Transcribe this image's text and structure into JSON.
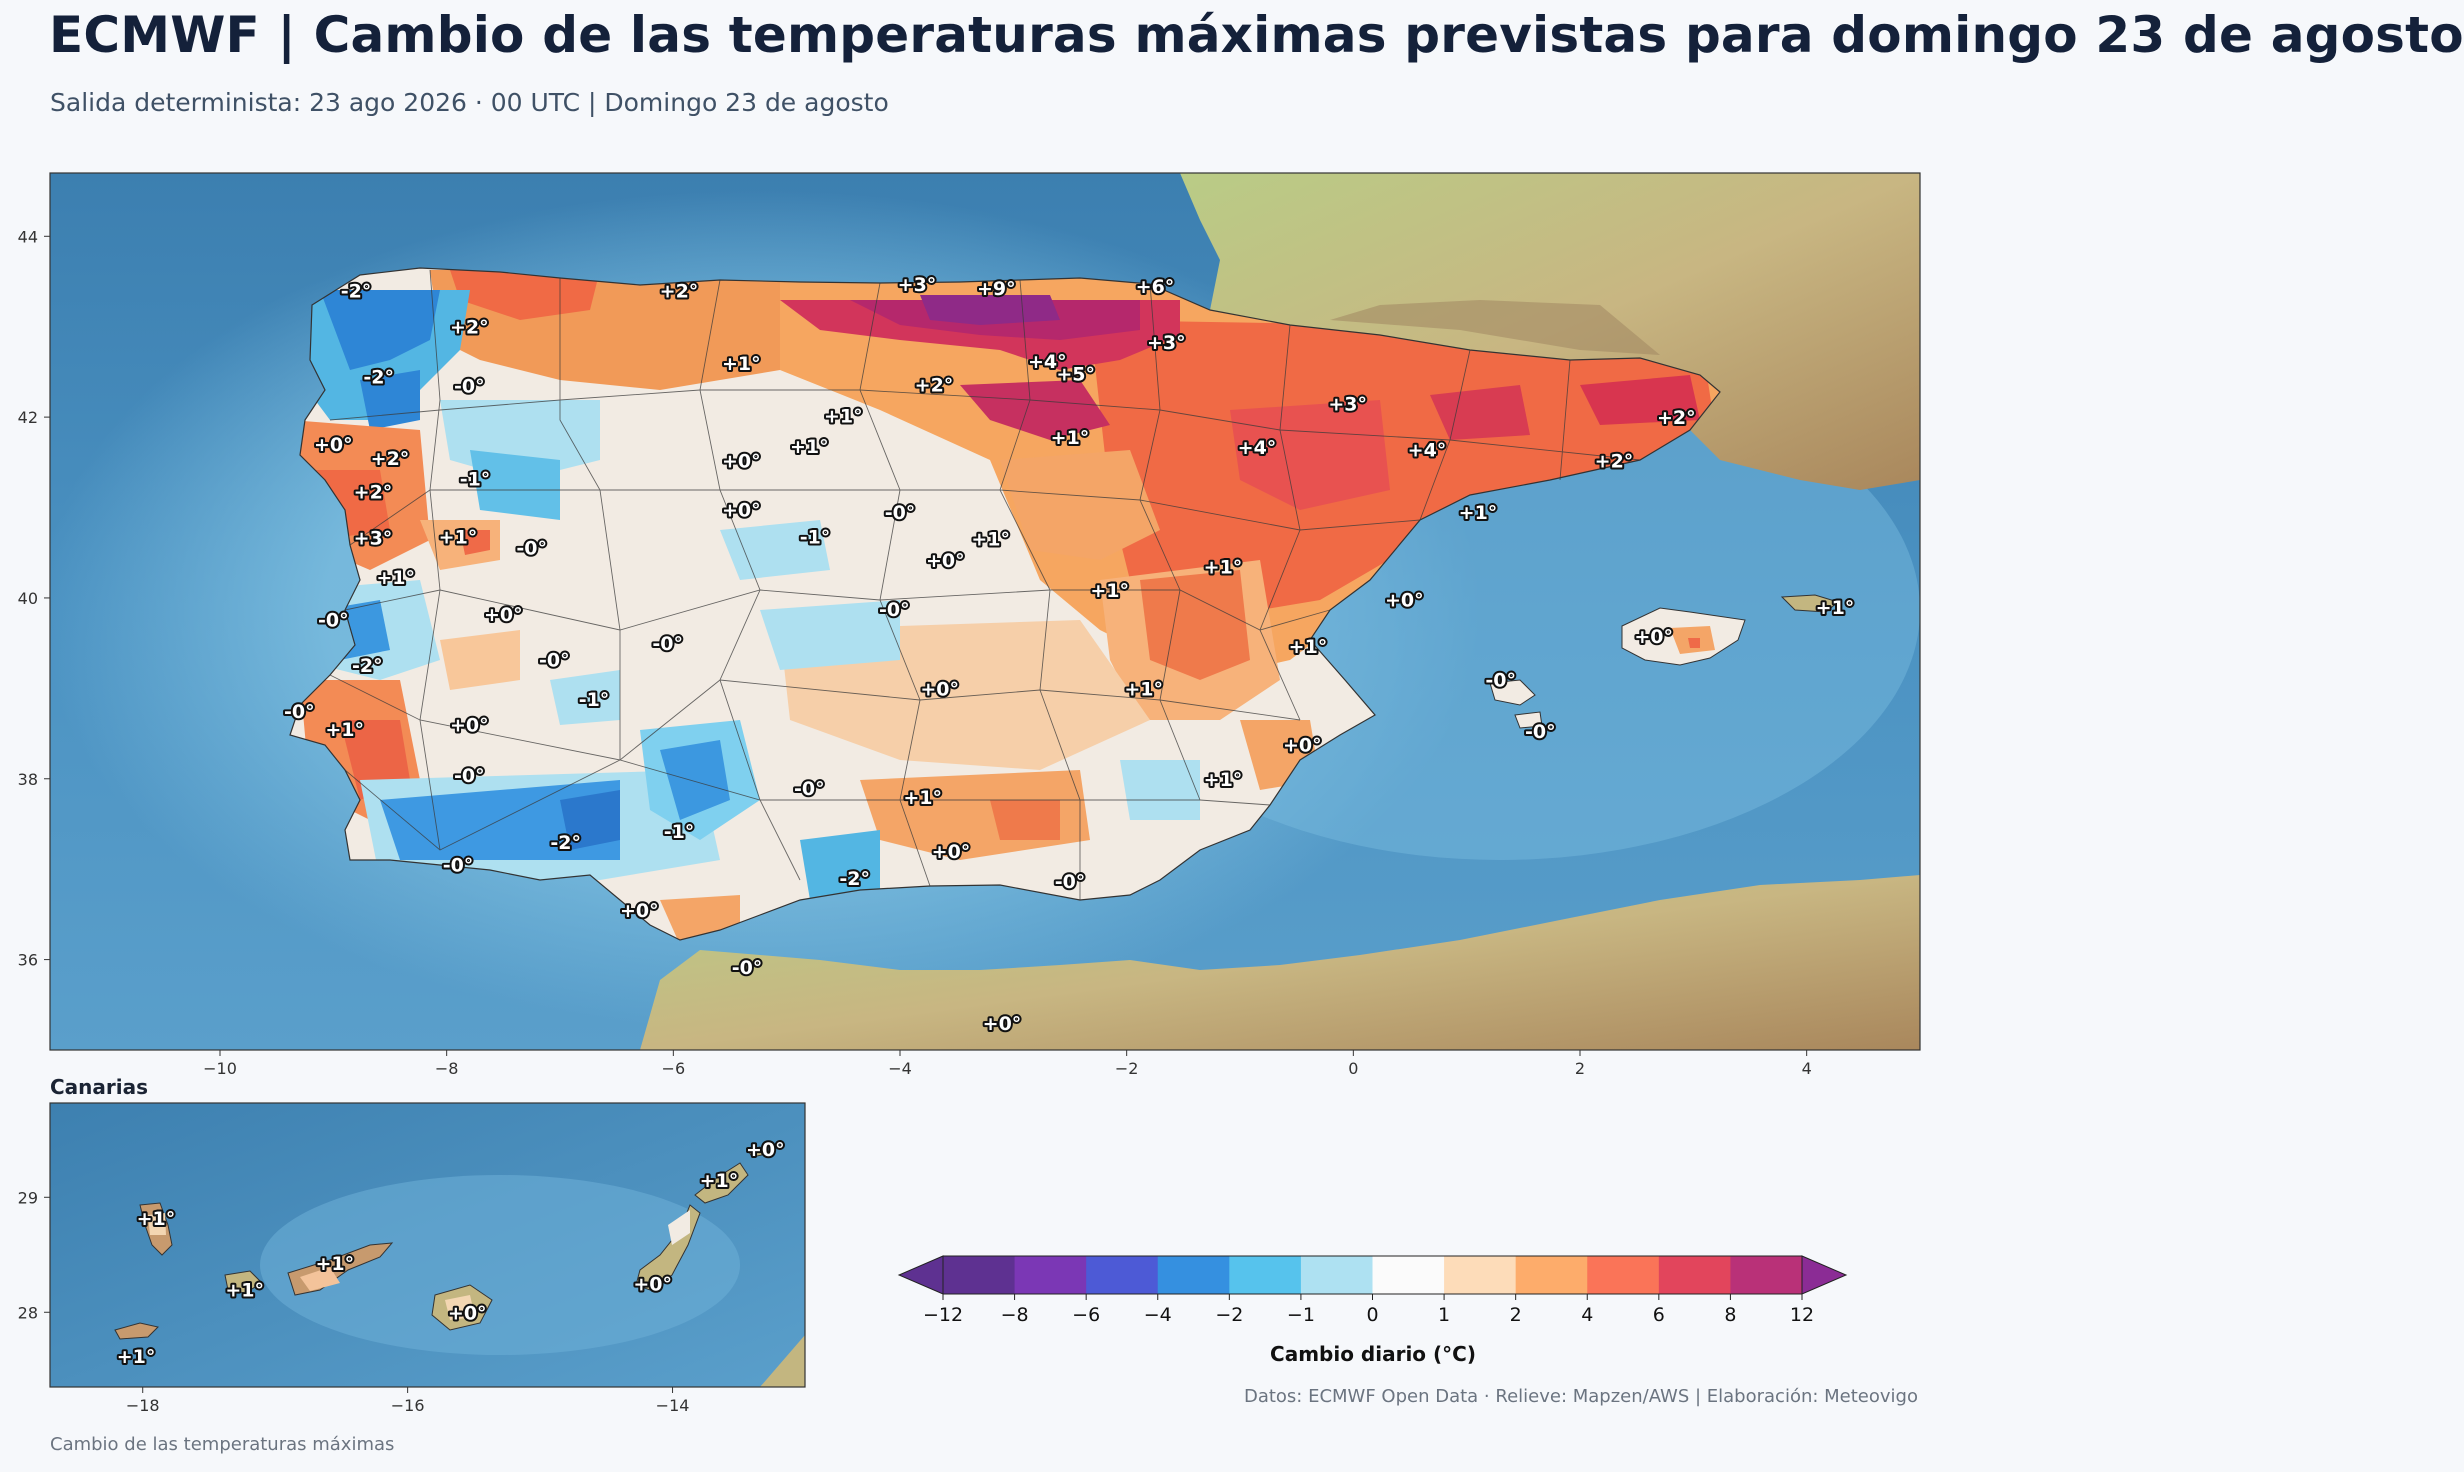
{
  "header": {
    "title": "ECMWF | Cambio de las temperaturas máximas previstas para domingo 23 de agosto",
    "subtitle": "Salida determinista: 23 ago 2026 · 00 UTC  |  Domingo 23 de agosto"
  },
  "main_map": {
    "lon_range": [
      -11.5,
      5.0
    ],
    "lat_range": [
      35.0,
      44.7
    ],
    "x_ticks": [
      "−10",
      "−8",
      "−6",
      "−4",
      "−2",
      "0",
      "2",
      "4"
    ],
    "y_ticks": [
      "36",
      "38",
      "40",
      "42",
      "44"
    ],
    "labels": [
      {
        "lon": -8.8,
        "lat": 43.4,
        "text": "-2°"
      },
      {
        "lon": -7.8,
        "lat": 43.0,
        "text": "+2°"
      },
      {
        "lon": -8.6,
        "lat": 42.45,
        "text": "-2°"
      },
      {
        "lon": -7.8,
        "lat": 42.35,
        "text": "-0°"
      },
      {
        "lon": -9.0,
        "lat": 41.7,
        "text": "+0°"
      },
      {
        "lon": -8.5,
        "lat": 41.55,
        "text": "+2°"
      },
      {
        "lon": -8.65,
        "lat": 41.18,
        "text": "+2°"
      },
      {
        "lon": -8.65,
        "lat": 40.67,
        "text": "+3°"
      },
      {
        "lon": -8.45,
        "lat": 40.23,
        "text": "+1°"
      },
      {
        "lon": -7.9,
        "lat": 40.68,
        "text": "+1°"
      },
      {
        "lon": -7.75,
        "lat": 41.32,
        "text": "-1°"
      },
      {
        "lon": -7.25,
        "lat": 40.56,
        "text": "-0°"
      },
      {
        "lon": -9.0,
        "lat": 39.76,
        "text": "-0°"
      },
      {
        "lon": -8.7,
        "lat": 39.26,
        "text": "-2°"
      },
      {
        "lon": -9.3,
        "lat": 38.75,
        "text": "-0°"
      },
      {
        "lon": -8.9,
        "lat": 38.55,
        "text": "+1°"
      },
      {
        "lon": -7.8,
        "lat": 38.6,
        "text": "+0°"
      },
      {
        "lon": -7.8,
        "lat": 38.04,
        "text": "-0°"
      },
      {
        "lon": -7.05,
        "lat": 39.32,
        "text": "-0°"
      },
      {
        "lon": -6.7,
        "lat": 38.88,
        "text": "-1°"
      },
      {
        "lon": -7.5,
        "lat": 39.82,
        "text": "+0°"
      },
      {
        "lon": -6.05,
        "lat": 39.5,
        "text": "-0°"
      },
      {
        "lon": -7.9,
        "lat": 37.05,
        "text": "-0°"
      },
      {
        "lon": -6.95,
        "lat": 37.3,
        "text": "-2°"
      },
      {
        "lon": -5.95,
        "lat": 37.42,
        "text": "-1°"
      },
      {
        "lon": -6.3,
        "lat": 36.55,
        "text": "+0°"
      },
      {
        "lon": -5.35,
        "lat": 35.92,
        "text": "-0°"
      },
      {
        "lon": -5.95,
        "lat": 43.4,
        "text": "+2°"
      },
      {
        "lon": -5.4,
        "lat": 42.6,
        "text": "+1°"
      },
      {
        "lon": -5.4,
        "lat": 41.52,
        "text": "+0°"
      },
      {
        "lon": -5.4,
        "lat": 40.98,
        "text": "+0°"
      },
      {
        "lon": -4.8,
        "lat": 41.68,
        "text": "+1°"
      },
      {
        "lon": -4.5,
        "lat": 42.02,
        "text": "+1°"
      },
      {
        "lon": -4.75,
        "lat": 40.68,
        "text": "-1°"
      },
      {
        "lon": -4.0,
        "lat": 40.95,
        "text": "-0°"
      },
      {
        "lon": -3.6,
        "lat": 40.42,
        "text": "+0°"
      },
      {
        "lon": -4.05,
        "lat": 39.88,
        "text": "-0°"
      },
      {
        "lon": -3.65,
        "lat": 39.0,
        "text": "+0°"
      },
      {
        "lon": -4.8,
        "lat": 37.9,
        "text": "-0°"
      },
      {
        "lon": -3.8,
        "lat": 37.8,
        "text": "+1°"
      },
      {
        "lon": -3.55,
        "lat": 37.2,
        "text": "+0°"
      },
      {
        "lon": -4.4,
        "lat": 36.9,
        "text": "-2°"
      },
      {
        "lon": -3.1,
        "lat": 35.3,
        "text": "+0°"
      },
      {
        "lon": -3.85,
        "lat": 43.47,
        "text": "+3°"
      },
      {
        "lon": -3.15,
        "lat": 43.43,
        "text": "+9°"
      },
      {
        "lon": -3.7,
        "lat": 42.36,
        "text": "+2°"
      },
      {
        "lon": -2.7,
        "lat": 42.62,
        "text": "+4°"
      },
      {
        "lon": -2.45,
        "lat": 42.48,
        "text": "+5°"
      },
      {
        "lon": -2.5,
        "lat": 41.78,
        "text": "+1°"
      },
      {
        "lon": -1.75,
        "lat": 43.45,
        "text": "+6°"
      },
      {
        "lon": -1.65,
        "lat": 42.83,
        "text": "+3°"
      },
      {
        "lon": -3.2,
        "lat": 40.66,
        "text": "+1°"
      },
      {
        "lon": -2.15,
        "lat": 40.09,
        "text": "+1°"
      },
      {
        "lon": -1.15,
        "lat": 40.35,
        "text": "+1°"
      },
      {
        "lon": -1.85,
        "lat": 39.0,
        "text": "+1°"
      },
      {
        "lon": -0.05,
        "lat": 42.15,
        "text": "+3°"
      },
      {
        "lon": -0.85,
        "lat": 41.67,
        "text": "+4°"
      },
      {
        "lon": 0.65,
        "lat": 41.64,
        "text": "+4°"
      },
      {
        "lon": 1.1,
        "lat": 40.95,
        "text": "+1°"
      },
      {
        "lon": 0.45,
        "lat": 39.98,
        "text": "+0°"
      },
      {
        "lon": -0.4,
        "lat": 39.47,
        "text": "+1°"
      },
      {
        "lon": -0.45,
        "lat": 38.38,
        "text": "+0°"
      },
      {
        "lon": -1.15,
        "lat": 38.0,
        "text": "+1°"
      },
      {
        "lon": -2.5,
        "lat": 36.87,
        "text": "-0°"
      },
      {
        "lon": 2.85,
        "lat": 42.0,
        "text": "+2°"
      },
      {
        "lon": 2.3,
        "lat": 41.52,
        "text": "+2°"
      },
      {
        "lon": 1.3,
        "lat": 39.1,
        "text": "-0°"
      },
      {
        "lon": 1.65,
        "lat": 38.53,
        "text": "-0°"
      },
      {
        "lon": 2.65,
        "lat": 39.58,
        "text": "+0°"
      },
      {
        "lon": 4.25,
        "lat": 39.9,
        "text": "+1°"
      }
    ]
  },
  "inset": {
    "title": "Canarias",
    "lon_range": [
      -18.7,
      -13.0
    ],
    "lat_range": [
      27.35,
      29.82
    ],
    "x_ticks": [
      "−18",
      "−16",
      "−14"
    ],
    "y_ticks": [
      "28",
      "29"
    ],
    "labels": [
      {
        "lon": -17.9,
        "lat": 28.82,
        "text": "+1°"
      },
      {
        "lon": -17.23,
        "lat": 28.2,
        "text": "+1°"
      },
      {
        "lon": -16.55,
        "lat": 28.43,
        "text": "+1°"
      },
      {
        "lon": -15.55,
        "lat": 28.0,
        "text": "+0°"
      },
      {
        "lon": -14.15,
        "lat": 28.25,
        "text": "+0°"
      },
      {
        "lon": -13.65,
        "lat": 29.15,
        "text": "+1°"
      },
      {
        "lon": -13.3,
        "lat": 29.42,
        "text": "+0°"
      },
      {
        "lon": -18.05,
        "lat": 27.62,
        "text": "+1°"
      }
    ]
  },
  "colorbar": {
    "label": "Cambio diario (°C)",
    "ticks": [
      "−12",
      "−8",
      "−6",
      "−4",
      "−2",
      "−1",
      "0",
      "1",
      "2",
      "4",
      "6",
      "8",
      "12"
    ],
    "colors": [
      "#5e3191",
      "#7b37b5",
      "#4d5ad6",
      "#3590e0",
      "#56c3ed",
      "#aee1f2",
      "#fbfbfb",
      "#fddcb9",
      "#fdac6b",
      "#fa7458",
      "#e2455c",
      "#b93178"
    ],
    "extend_low": "#5e3191",
    "extend_high": "#8b2c95"
  },
  "credits": "Datos: ECMWF Open Data · Relieve: Mapzen/AWS  |  Elaboración: Meteovigo",
  "footer": "Cambio de las temperaturas máximas"
}
